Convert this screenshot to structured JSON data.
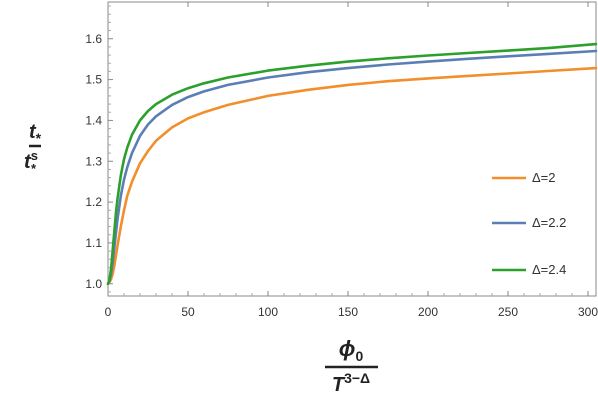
{
  "chart_data": {
    "type": "line",
    "xlabel": {
      "numerator": "ϕ",
      "numerator_sub": "0",
      "denominator": "T",
      "denominator_sup": "3−Δ"
    },
    "ylabel": {
      "numerator": "t",
      "numerator_sub": "*",
      "denominator": "t",
      "denominator_sup": "s",
      "denominator_sub": "*"
    },
    "xlim": [
      0,
      305
    ],
    "ylim": [
      0.97,
      1.69
    ],
    "x_ticks": [
      0,
      50,
      100,
      150,
      200,
      250,
      300
    ],
    "y_ticks": [
      1.0,
      1.1,
      1.2,
      1.3,
      1.4,
      1.5,
      1.6
    ],
    "x_tick_labels": [
      "0",
      "50",
      "100",
      "150",
      "200",
      "250",
      "300"
    ],
    "y_tick_labels": [
      "1.0",
      "1.1",
      "1.2",
      "1.3",
      "1.4",
      "1.5",
      "1.6"
    ],
    "grid": false,
    "legend_position": "right",
    "series": [
      {
        "name": "Δ=2",
        "color": "#f28e2b",
        "x": [
          0,
          1,
          2,
          3,
          4,
          5,
          6,
          8,
          10,
          12,
          15,
          20,
          25,
          30,
          40,
          50,
          60,
          75,
          100,
          125,
          150,
          175,
          200,
          225,
          250,
          275,
          305
        ],
        "y": [
          1.0,
          1.004,
          1.012,
          1.025,
          1.045,
          1.07,
          1.095,
          1.14,
          1.18,
          1.215,
          1.25,
          1.295,
          1.325,
          1.35,
          1.383,
          1.405,
          1.42,
          1.438,
          1.46,
          1.475,
          1.487,
          1.496,
          1.503,
          1.509,
          1.515,
          1.521,
          1.528
        ]
      },
      {
        "name": "Δ=2.2",
        "color": "#5b7fb5",
        "x": [
          0,
          1,
          2,
          3,
          4,
          5,
          6,
          8,
          10,
          12,
          15,
          20,
          25,
          30,
          40,
          50,
          60,
          75,
          100,
          125,
          150,
          175,
          200,
          225,
          250,
          275,
          305
        ],
        "y": [
          1.0,
          1.007,
          1.025,
          1.055,
          1.09,
          1.125,
          1.16,
          1.215,
          1.255,
          1.285,
          1.32,
          1.362,
          1.39,
          1.41,
          1.438,
          1.457,
          1.471,
          1.487,
          1.505,
          1.518,
          1.528,
          1.537,
          1.544,
          1.551,
          1.557,
          1.563,
          1.57
        ]
      },
      {
        "name": "Δ=2.4",
        "color": "#2ca02c",
        "x": [
          0,
          1,
          2,
          3,
          4,
          5,
          6,
          8,
          10,
          12,
          15,
          20,
          25,
          30,
          40,
          50,
          60,
          75,
          100,
          125,
          150,
          175,
          200,
          225,
          250,
          275,
          305
        ],
        "y": [
          1.0,
          1.01,
          1.04,
          1.085,
          1.13,
          1.175,
          1.21,
          1.265,
          1.305,
          1.333,
          1.365,
          1.4,
          1.423,
          1.44,
          1.463,
          1.479,
          1.491,
          1.505,
          1.522,
          1.534,
          1.544,
          1.552,
          1.559,
          1.565,
          1.571,
          1.577,
          1.587
        ]
      }
    ]
  }
}
